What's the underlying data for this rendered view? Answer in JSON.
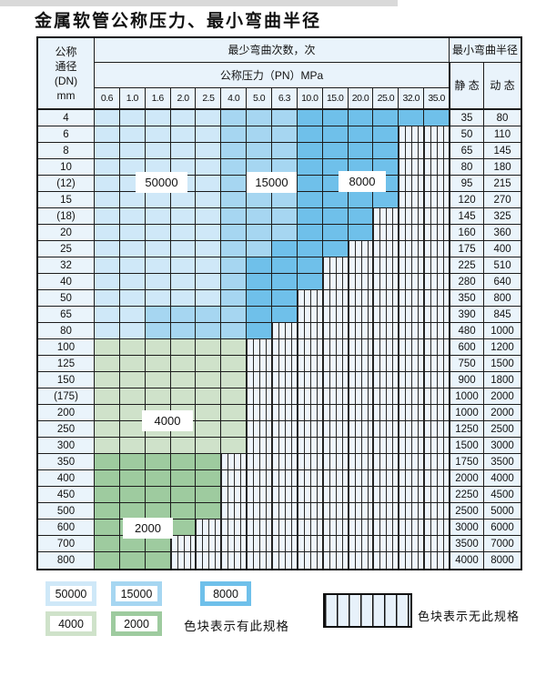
{
  "title": "金属软管公称压力、最小弯曲半径",
  "table": {
    "dn_header_lines": [
      "公称",
      "通径",
      "(DN)",
      "mm"
    ],
    "cycles_header": "最少弯曲次数，次",
    "pn_header": "公称压力（PN）MPa",
    "radius_header": "最小弯曲半径",
    "static_header": "静 态",
    "dynamic_header": "动 态",
    "pressure_columns": [
      "0.6",
      "1.0",
      "1.6",
      "2.0",
      "2.5",
      "4.0",
      "5.0",
      "6.3",
      "10.0",
      "15.0",
      "20.0",
      "25.0",
      "32.0",
      "35.0"
    ],
    "cycle_labels": [
      "50000",
      "15000",
      "8000",
      "4000",
      "2000"
    ],
    "rows": [
      {
        "dn": "4",
        "cells": "LLLLLMMMDDDDDD",
        "static": "35",
        "dynamic": "80"
      },
      {
        "dn": "6",
        "cells": "LLLLLMMMDDDDHH",
        "static": "50",
        "dynamic": "110"
      },
      {
        "dn": "8",
        "cells": "LLLLLMMMDDDDHH",
        "static": "65",
        "dynamic": "145"
      },
      {
        "dn": "10",
        "cells": "LLLLLMMMDDDDHH",
        "static": "80",
        "dynamic": "180"
      },
      {
        "dn": "(12)",
        "cells": "LLLLLMMMDDDDHH",
        "static": "95",
        "dynamic": "215"
      },
      {
        "dn": "15",
        "cells": "LLLLLMMMDDDDHH",
        "static": "120",
        "dynamic": "270"
      },
      {
        "dn": "(18)",
        "cells": "LLLLLMMMDDDHHH",
        "static": "145",
        "dynamic": "325"
      },
      {
        "dn": "20",
        "cells": "LLLLLMMMDDDHHH",
        "static": "160",
        "dynamic": "360"
      },
      {
        "dn": "25",
        "cells": "LLLLLMMDDDHHHH",
        "static": "175",
        "dynamic": "400"
      },
      {
        "dn": "32",
        "cells": "LLLLLMDDDHHHHH",
        "static": "225",
        "dynamic": "510"
      },
      {
        "dn": "40",
        "cells": "LLLLLMDDDHHHHH",
        "static": "280",
        "dynamic": "640"
      },
      {
        "dn": "50",
        "cells": "LLLLLMDDHHHHHH",
        "static": "350",
        "dynamic": "800"
      },
      {
        "dn": "65",
        "cells": "LLMMMMDDHHHHHH",
        "static": "390",
        "dynamic": "845"
      },
      {
        "dn": "80",
        "cells": "LLMMMMDHHHHHHH",
        "static": "480",
        "dynamic": "1000"
      },
      {
        "dn": "100",
        "cells": "FFFFFFHHHHHHHH",
        "static": "600",
        "dynamic": "1200"
      },
      {
        "dn": "125",
        "cells": "FFFFFFHHHHHHHH",
        "static": "750",
        "dynamic": "1500"
      },
      {
        "dn": "150",
        "cells": "FFFFFFHHHHHHHH",
        "static": "900",
        "dynamic": "1800"
      },
      {
        "dn": "(175)",
        "cells": "FFFFFFHHHHHHHH",
        "static": "1000",
        "dynamic": "2000"
      },
      {
        "dn": "200",
        "cells": "FFFFFFHHHHHHHH",
        "static": "1000",
        "dynamic": "2000"
      },
      {
        "dn": "250",
        "cells": "FFFFFFHHHHHHHH",
        "static": "1250",
        "dynamic": "2500"
      },
      {
        "dn": "300",
        "cells": "FFFFFFHHHHHHHH",
        "static": "1500",
        "dynamic": "3000"
      },
      {
        "dn": "350",
        "cells": "TTTTTHHHHHHHHH",
        "static": "1750",
        "dynamic": "3500"
      },
      {
        "dn": "400",
        "cells": "TTTTTHHHHHHHHH",
        "static": "2000",
        "dynamic": "4000"
      },
      {
        "dn": "450",
        "cells": "TTTTTHHHHHHHHH",
        "static": "2250",
        "dynamic": "4500"
      },
      {
        "dn": "500",
        "cells": "TTTTTHHHHHHHHH",
        "static": "2500",
        "dynamic": "5000"
      },
      {
        "dn": "600",
        "cells": "TTTTHHHHHHHHHH",
        "static": "3000",
        "dynamic": "6000"
      },
      {
        "dn": "700",
        "cells": "TTTHHHHHHHHHHH",
        "static": "3500",
        "dynamic": "7000"
      },
      {
        "dn": "800",
        "cells": "TTTHHHHHHHHHHH",
        "static": "4000",
        "dynamic": "8000"
      }
    ]
  },
  "legend": {
    "items": [
      {
        "value": "50000",
        "color": "#cfe8f8"
      },
      {
        "value": "15000",
        "color": "#a6d6f1"
      },
      {
        "value": "8000",
        "color": "#6fc0ea"
      },
      {
        "value": "4000",
        "color": "#cfe2ca"
      },
      {
        "value": "2000",
        "color": "#9ecb9f"
      }
    ],
    "has_spec_text": "色块表示有此规格",
    "no_spec_text": "色块表示无此规格"
  },
  "chart_data": {
    "type": "table",
    "title": "金属软管公称压力、最小弯曲半径",
    "x_columns_pn_mpa": [
      0.6,
      1.0,
      1.6,
      2.0,
      2.5,
      4.0,
      5.0,
      6.3,
      10.0,
      15.0,
      20.0,
      25.0,
      32.0,
      35.0
    ],
    "zone_key": {
      "L": 50000,
      "M": 15000,
      "D": 8000,
      "F": 4000,
      "T": 2000,
      "H": "无此规格"
    },
    "rows": [
      {
        "dn": "4",
        "zones": "LLLLLMMMDDDDDD",
        "bend_radius_static": 35,
        "bend_radius_dynamic": 80
      },
      {
        "dn": "6",
        "zones": "LLLLLMMMDDDDHH",
        "bend_radius_static": 50,
        "bend_radius_dynamic": 110
      },
      {
        "dn": "8",
        "zones": "LLLLLMMMDDDDHH",
        "bend_radius_static": 65,
        "bend_radius_dynamic": 145
      },
      {
        "dn": "10",
        "zones": "LLLLLMMMDDDDHH",
        "bend_radius_static": 80,
        "bend_radius_dynamic": 180
      },
      {
        "dn": "(12)",
        "zones": "LLLLLMMMDDDDHH",
        "bend_radius_static": 95,
        "bend_radius_dynamic": 215
      },
      {
        "dn": "15",
        "zones": "LLLLLMMMDDDDHH",
        "bend_radius_static": 120,
        "bend_radius_dynamic": 270
      },
      {
        "dn": "(18)",
        "zones": "LLLLLMMMDDDHHH",
        "bend_radius_static": 145,
        "bend_radius_dynamic": 325
      },
      {
        "dn": "20",
        "zones": "LLLLLMMMDDDHHH",
        "bend_radius_static": 160,
        "bend_radius_dynamic": 360
      },
      {
        "dn": "25",
        "zones": "LLLLLMMDDDHHHH",
        "bend_radius_static": 175,
        "bend_radius_dynamic": 400
      },
      {
        "dn": "32",
        "zones": "LLLLLMDDDHHHHH",
        "bend_radius_static": 225,
        "bend_radius_dynamic": 510
      },
      {
        "dn": "40",
        "zones": "LLLLLMDDDHHHHH",
        "bend_radius_static": 280,
        "bend_radius_dynamic": 640
      },
      {
        "dn": "50",
        "zones": "LLLLLMDDHHHHHH",
        "bend_radius_static": 350,
        "bend_radius_dynamic": 800
      },
      {
        "dn": "65",
        "zones": "LLMMMMDDHHHHHH",
        "bend_radius_static": 390,
        "bend_radius_dynamic": 845
      },
      {
        "dn": "80",
        "zones": "LLMMMMDHHHHHHH",
        "bend_radius_static": 480,
        "bend_radius_dynamic": 1000
      },
      {
        "dn": "100",
        "zones": "FFFFFFHHHHHHHH",
        "bend_radius_static": 600,
        "bend_radius_dynamic": 1200
      },
      {
        "dn": "125",
        "zones": "FFFFFFHHHHHHHH",
        "bend_radius_static": 750,
        "bend_radius_dynamic": 1500
      },
      {
        "dn": "150",
        "zones": "FFFFFFHHHHHHHH",
        "bend_radius_static": 900,
        "bend_radius_dynamic": 1800
      },
      {
        "dn": "(175)",
        "zones": "FFFFFFHHHHHHHH",
        "bend_radius_static": 1000,
        "bend_radius_dynamic": 2000
      },
      {
        "dn": "200",
        "zones": "FFFFFFHHHHHHHH",
        "bend_radius_static": 1000,
        "bend_radius_dynamic": 2000
      },
      {
        "dn": "250",
        "zones": "FFFFFFHHHHHHHH",
        "bend_radius_static": 1250,
        "bend_radius_dynamic": 2500
      },
      {
        "dn": "300",
        "zones": "FFFFFFHHHHHHHH",
        "bend_radius_static": 1500,
        "bend_radius_dynamic": 3000
      },
      {
        "dn": "350",
        "zones": "TTTTTHHHHHHHHH",
        "bend_radius_static": 1750,
        "bend_radius_dynamic": 3500
      },
      {
        "dn": "400",
        "zones": "TTTTTHHHHHHHHH",
        "bend_radius_static": 2000,
        "bend_radius_dynamic": 4000
      },
      {
        "dn": "450",
        "zones": "TTTTTHHHHHHHHH",
        "bend_radius_static": 2250,
        "bend_radius_dynamic": 4500
      },
      {
        "dn": "500",
        "zones": "TTTTTHHHHHHHHH",
        "bend_radius_static": 2500,
        "bend_radius_dynamic": 5000
      },
      {
        "dn": "600",
        "zones": "TTTTHHHHHHHHHH",
        "bend_radius_static": 3000,
        "bend_radius_dynamic": 6000
      },
      {
        "dn": "700",
        "zones": "TTTHHHHHHHHHHH",
        "bend_radius_static": 3500,
        "bend_radius_dynamic": 7000
      },
      {
        "dn": "800",
        "zones": "TTTHHHHHHHHHHH",
        "bend_radius_static": 4000,
        "bend_radius_dynamic": 8000
      }
    ]
  }
}
